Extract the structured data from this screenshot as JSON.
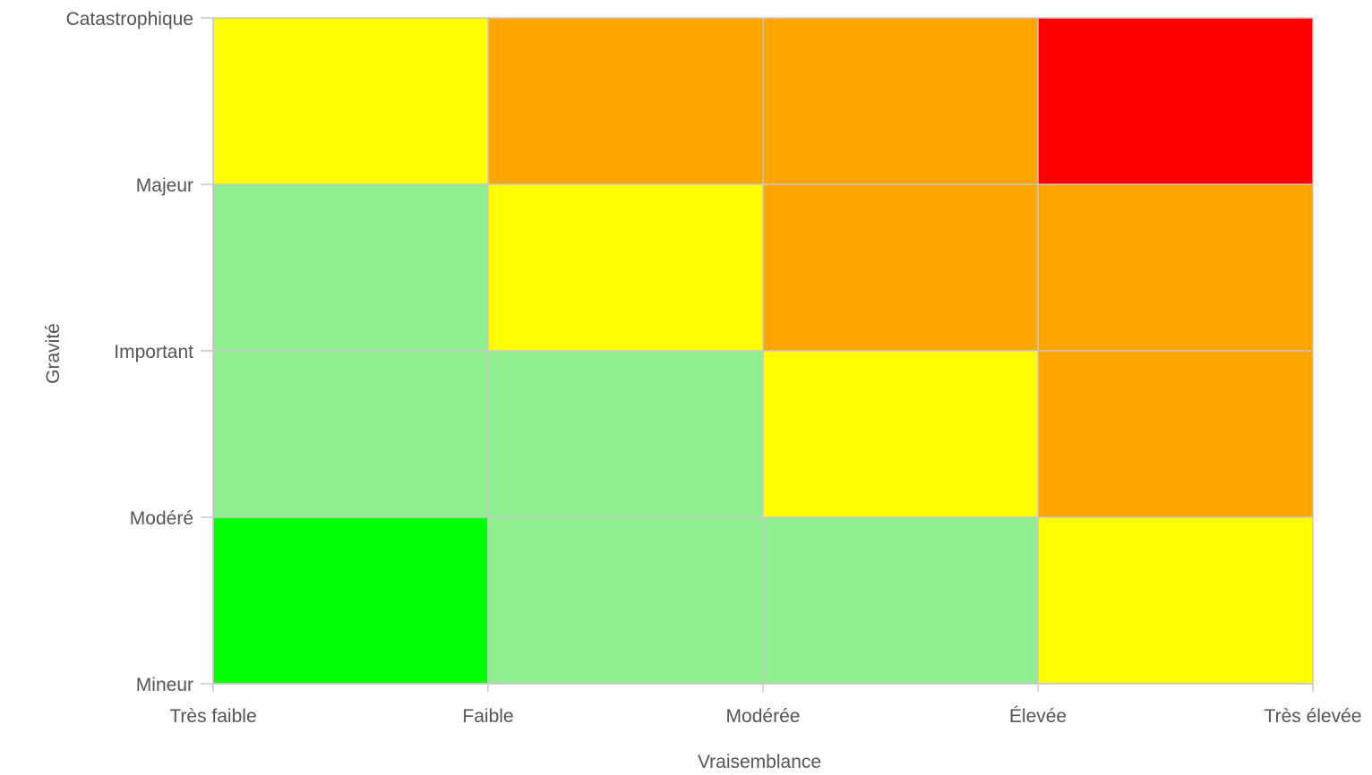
{
  "chart_data": {
    "type": "heatmap",
    "title": "",
    "xlabel": "Vraisemblance",
    "ylabel": "Gravité",
    "x_ticks": [
      "Très faible",
      "Faible",
      "Modérée",
      "Élevée",
      "Très élevée"
    ],
    "y_ticks": [
      "Mineur",
      "Modéré",
      "Important",
      "Majeur",
      "Catastrophique"
    ],
    "grid": true,
    "legend": "none",
    "colors": {
      "vert": "#00ff00",
      "vert_clair": "#90ee90",
      "jaune": "#ffff00",
      "orange": "#ffa500",
      "rouge": "#ff0000"
    },
    "cells": [
      {
        "col": 0,
        "row": 0,
        "color": "#00ff00"
      },
      {
        "col": 1,
        "row": 0,
        "color": "#90ee90"
      },
      {
        "col": 2,
        "row": 0,
        "color": "#90ee90"
      },
      {
        "col": 3,
        "row": 0,
        "color": "#ffff00"
      },
      {
        "col": 0,
        "row": 1,
        "color": "#90ee90"
      },
      {
        "col": 1,
        "row": 1,
        "color": "#90ee90"
      },
      {
        "col": 2,
        "row": 1,
        "color": "#ffff00"
      },
      {
        "col": 3,
        "row": 1,
        "color": "#ffa500"
      },
      {
        "col": 0,
        "row": 2,
        "color": "#90ee90"
      },
      {
        "col": 1,
        "row": 2,
        "color": "#ffff00"
      },
      {
        "col": 2,
        "row": 2,
        "color": "#ffa500"
      },
      {
        "col": 3,
        "row": 2,
        "color": "#ffa500"
      },
      {
        "col": 0,
        "row": 3,
        "color": "#ffff00"
      },
      {
        "col": 1,
        "row": 3,
        "color": "#ffa500"
      },
      {
        "col": 2,
        "row": 3,
        "color": "#ffa500"
      },
      {
        "col": 3,
        "row": 3,
        "color": "#ff0000"
      }
    ]
  }
}
